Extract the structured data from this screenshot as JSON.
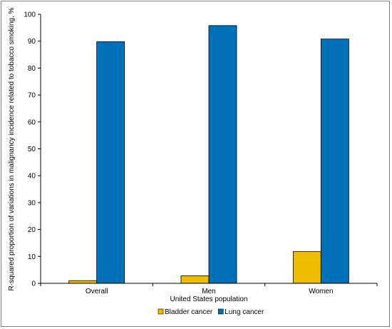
{
  "chart_data": {
    "type": "bar",
    "categories": [
      "Overall",
      "Men",
      "Women"
    ],
    "series": [
      {
        "name": "Bladder cancer",
        "values": [
          1,
          2.8,
          11.8
        ],
        "color": "#f0bc00"
      },
      {
        "name": "Lung cancer",
        "values": [
          89.8,
          95.8,
          90.8
        ],
        "color": "#0070b8"
      }
    ],
    "xlabel": "United States population",
    "ylabel": "R-squared proportion of variations in malignancy incidence related to tobacco smoking, %",
    "ylim": [
      0,
      100
    ],
    "yticks": [
      "0",
      "10",
      "20",
      "30",
      "40",
      "50",
      "60",
      "70",
      "80",
      "90",
      "100"
    ],
    "grid": false,
    "legend_position": "bottom"
  }
}
